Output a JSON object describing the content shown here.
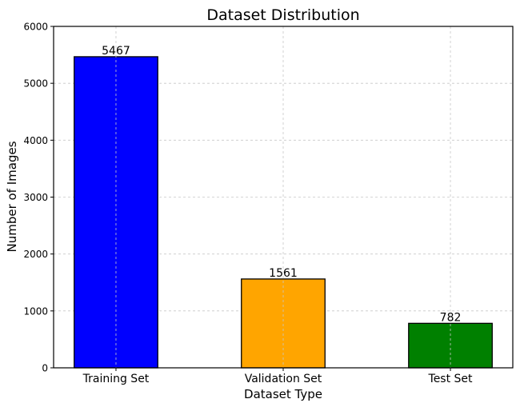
{
  "chart_data": {
    "type": "bar",
    "title": "Dataset Distribution",
    "xlabel": "Dataset Type",
    "ylabel": "Number of Images",
    "categories": [
      "Training Set",
      "Validation Set",
      "Test Set"
    ],
    "values": [
      5467,
      1561,
      782
    ],
    "data_labels": [
      "5467",
      "1561",
      "782"
    ],
    "colors": [
      "#0000ff",
      "#ffa500",
      "#008000"
    ],
    "ylim": [
      0,
      6000
    ],
    "yticks": [
      0,
      1000,
      2000,
      3000,
      4000,
      5000,
      6000
    ],
    "ytick_labels": [
      "0",
      "1000",
      "2000",
      "3000",
      "4000",
      "5000",
      "6000"
    ],
    "grid": true,
    "legend": "none"
  }
}
